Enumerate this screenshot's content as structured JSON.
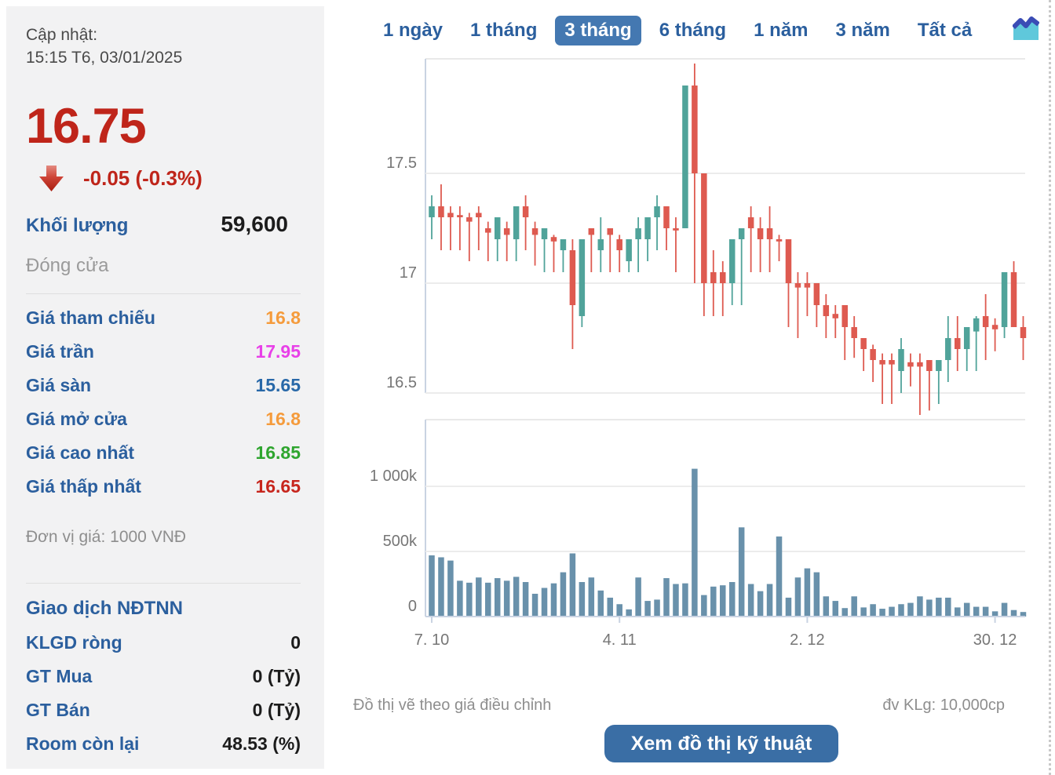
{
  "left_panel": {
    "updated_label": "Cập nhật:",
    "updated_time": "15:15 T6, 03/01/2025",
    "price": "16.75",
    "change": "-0.05 (-0.3%)",
    "volume_label": "Khối lượng",
    "volume_value": "59,600",
    "close_label": "Đóng cửa",
    "details": [
      {
        "label": "Giá tham chiếu",
        "value": "16.8",
        "color": "#F59B3C"
      },
      {
        "label": "Giá trần",
        "value": "17.95",
        "color": "#E840E8"
      },
      {
        "label": "Giá sàn",
        "value": "15.65",
        "color": "#2868A8"
      },
      {
        "label": "Giá mở cửa",
        "value": "16.8",
        "color": "#F59B3C"
      },
      {
        "label": "Giá cao nhất",
        "value": "16.85",
        "color": "#2FA52F"
      },
      {
        "label": "Giá thấp nhất",
        "value": "16.65",
        "color": "#C7261D"
      }
    ],
    "unit_note": "Đơn vị giá: 1000 VNĐ",
    "foreign_title": "Giao dịch NĐTNN",
    "foreign_rows": [
      {
        "label": "KLGD ròng",
        "value": "0"
      },
      {
        "label": "GT Mua",
        "value": "0 (Tỷ)"
      },
      {
        "label": "GT Bán",
        "value": "0 (Tỷ)"
      },
      {
        "label": "Room còn lại",
        "value": "48.53 (%)"
      }
    ]
  },
  "tabs": {
    "items": [
      {
        "label": "1 ngày"
      },
      {
        "label": "1 tháng"
      },
      {
        "label": "3 tháng"
      },
      {
        "label": "6 tháng"
      },
      {
        "label": "1 năm"
      },
      {
        "label": "3 năm"
      },
      {
        "label": "Tất cả"
      }
    ],
    "active_index": 2
  },
  "footer": {
    "left": "Đồ thị vẽ theo giá điều chỉnh",
    "right": "đv KLg: 10,000cp"
  },
  "action_button": "Xem đồ thị kỹ thuật",
  "colors": {
    "price_red": "#BF251A",
    "link_blue": "#2B5F9E",
    "tab_active_bg": "#4478B1",
    "button_bg": "#3A6EA5",
    "candle_up": "#50A39A",
    "candle_down": "#DE5A50",
    "volume_bar": "#6991AB",
    "gridline": "#ECECEC",
    "panel_border": "#E9E9E9",
    "axis_line": "#C9D3E2",
    "icon_area_fill": "#5FC8DB",
    "icon_line": "#3A4CB5"
  },
  "chart_data": {
    "type": "candlestick+volume",
    "title": "",
    "price_axis": {
      "ticks": [
        {
          "value": 17.5,
          "label": "17.5"
        },
        {
          "value": 17.0,
          "label": "17"
        },
        {
          "value": 16.5,
          "label": "16.5"
        }
      ],
      "range": [
        16.35,
        18.05
      ]
    },
    "volume_axis": {
      "unit": "k",
      "ticks": [
        {
          "value": 1000,
          "label": "1 000k"
        },
        {
          "value": 500,
          "label": "500k"
        },
        {
          "value": 0,
          "label": "0"
        }
      ],
      "range": [
        0,
        1500
      ]
    },
    "x_axis": {
      "ticks": [
        {
          "index": 0,
          "label": "7. 10"
        },
        {
          "index": 20,
          "label": "4. 11"
        },
        {
          "index": 40,
          "label": "2. 12"
        },
        {
          "index": 60,
          "label": "30. 12"
        }
      ]
    },
    "candles_format": [
      "open",
      "high",
      "low",
      "close"
    ],
    "candles": [
      [
        17.3,
        17.4,
        17.2,
        17.35
      ],
      [
        17.35,
        17.45,
        17.15,
        17.3
      ],
      [
        17.32,
        17.35,
        17.15,
        17.3
      ],
      [
        17.31,
        17.35,
        17.15,
        17.3
      ],
      [
        17.3,
        17.32,
        17.1,
        17.28
      ],
      [
        17.32,
        17.35,
        17.15,
        17.3
      ],
      [
        17.25,
        17.28,
        17.1,
        17.23
      ],
      [
        17.2,
        17.3,
        17.1,
        17.3
      ],
      [
        17.25,
        17.28,
        17.1,
        17.22
      ],
      [
        17.2,
        17.35,
        17.1,
        17.35
      ],
      [
        17.35,
        17.4,
        17.15,
        17.3
      ],
      [
        17.25,
        17.28,
        17.08,
        17.22
      ],
      [
        17.2,
        17.25,
        17.05,
        17.25
      ],
      [
        17.21,
        17.22,
        17.05,
        17.19
      ],
      [
        17.15,
        17.2,
        17.05,
        17.2
      ],
      [
        17.15,
        17.2,
        16.7,
        16.9
      ],
      [
        16.85,
        17.2,
        16.8,
        17.2
      ],
      [
        17.25,
        17.25,
        17.05,
        17.22
      ],
      [
        17.15,
        17.3,
        17.05,
        17.2
      ],
      [
        17.25,
        17.25,
        17.05,
        17.22
      ],
      [
        17.2,
        17.22,
        17.05,
        17.15
      ],
      [
        17.1,
        17.2,
        17.05,
        17.2
      ],
      [
        17.2,
        17.3,
        17.05,
        17.25
      ],
      [
        17.2,
        17.3,
        17.1,
        17.3
      ],
      [
        17.3,
        17.4,
        17.15,
        17.35
      ],
      [
        17.35,
        17.35,
        17.15,
        17.25
      ],
      [
        17.25,
        17.3,
        17.05,
        17.24
      ],
      [
        17.25,
        17.9,
        17.25,
        17.9
      ],
      [
        17.9,
        18.0,
        17.0,
        17.5
      ],
      [
        17.5,
        17.5,
        16.85,
        17.0
      ],
      [
        17.05,
        17.15,
        16.85,
        17.0
      ],
      [
        17.05,
        17.1,
        16.85,
        17.0
      ],
      [
        17.0,
        17.2,
        16.9,
        17.2
      ],
      [
        17.2,
        17.25,
        16.9,
        17.25
      ],
      [
        17.3,
        17.35,
        17.05,
        17.25
      ],
      [
        17.25,
        17.3,
        17.05,
        17.2
      ],
      [
        17.25,
        17.35,
        17.05,
        17.2
      ],
      [
        17.2,
        17.22,
        17.1,
        17.19
      ],
      [
        17.2,
        17.2,
        16.8,
        17.0
      ],
      [
        17.0,
        17.05,
        16.75,
        16.98
      ],
      [
        17.0,
        17.05,
        16.85,
        16.98
      ],
      [
        17.0,
        17.0,
        16.8,
        16.9
      ],
      [
        16.9,
        16.95,
        16.75,
        16.85
      ],
      [
        16.86,
        16.9,
        16.75,
        16.84
      ],
      [
        16.9,
        16.9,
        16.65,
        16.8
      ],
      [
        16.8,
        16.85,
        16.66,
        16.75
      ],
      [
        16.75,
        16.75,
        16.6,
        16.7
      ],
      [
        16.7,
        16.72,
        16.55,
        16.65
      ],
      [
        16.65,
        16.68,
        16.45,
        16.63
      ],
      [
        16.65,
        16.68,
        16.45,
        16.63
      ],
      [
        16.6,
        16.75,
        16.5,
        16.7
      ],
      [
        16.64,
        16.68,
        16.53,
        16.62
      ],
      [
        16.64,
        16.68,
        16.4,
        16.62
      ],
      [
        16.65,
        16.65,
        16.42,
        16.6
      ],
      [
        16.6,
        16.65,
        16.45,
        16.65
      ],
      [
        16.65,
        16.85,
        16.55,
        16.75
      ],
      [
        16.75,
        16.85,
        16.6,
        16.7
      ],
      [
        16.7,
        16.8,
        16.6,
        16.8
      ],
      [
        16.78,
        16.85,
        16.6,
        16.84
      ],
      [
        16.85,
        16.95,
        16.65,
        16.8
      ],
      [
        16.81,
        16.84,
        16.69,
        16.79
      ],
      [
        16.8,
        17.05,
        16.75,
        17.05
      ],
      [
        17.05,
        17.1,
        16.8,
        16.8
      ],
      [
        16.8,
        16.85,
        16.65,
        16.75
      ]
    ],
    "volumes_k": [
      470,
      455,
      430,
      275,
      260,
      300,
      260,
      295,
      275,
      305,
      265,
      175,
      220,
      255,
      340,
      485,
      265,
      300,
      200,
      145,
      95,
      55,
      300,
      120,
      130,
      295,
      250,
      255,
      1135,
      165,
      230,
      240,
      265,
      685,
      250,
      195,
      250,
      615,
      145,
      300,
      370,
      340,
      155,
      120,
      65,
      155,
      70,
      95,
      60,
      75,
      95,
      105,
      155,
      130,
      145,
      145,
      70,
      105,
      75,
      75,
      40,
      105,
      50,
      35
    ]
  }
}
